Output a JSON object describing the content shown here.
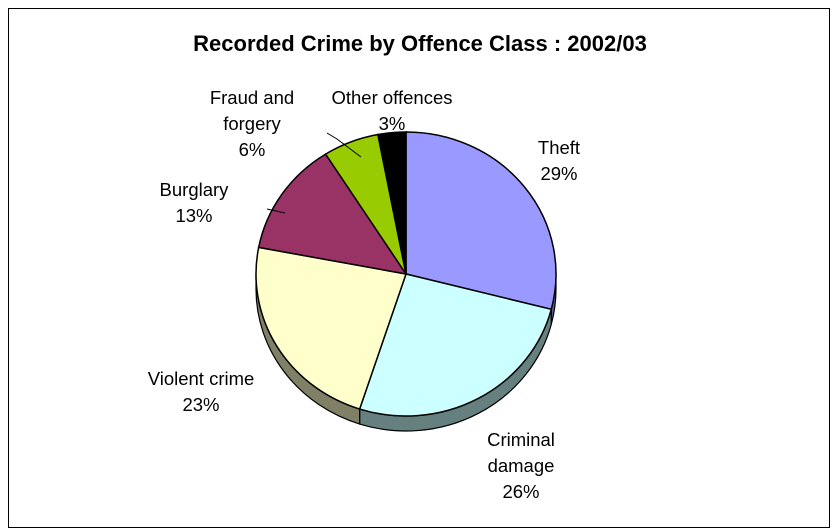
{
  "chart_data": {
    "type": "pie",
    "title": "Recorded Crime by Offence Class : 2002/03",
    "slices": [
      {
        "label": "Theft",
        "value": 29,
        "value_text": "29%",
        "color": "#9999FF",
        "side_color": "#5C5C99"
      },
      {
        "label": "Criminal damage",
        "value": 26,
        "value_text": "26%",
        "color": "#CCFFFF",
        "side_color": "#668080"
      },
      {
        "label": "Violent crime",
        "value": 23,
        "value_text": "23%",
        "color": "#FFFFCC",
        "side_color": "#808066"
      },
      {
        "label": "Burglary",
        "value": 13,
        "value_text": "13%",
        "color": "#993366",
        "side_color": "#4D1A33"
      },
      {
        "label": "Fraud and forgery",
        "value": 6,
        "value_text": "6%",
        "color": "#99CC00",
        "side_color": "#4D6600"
      },
      {
        "label": "Other offences",
        "value": 3,
        "value_text": "3%",
        "color": "#000000",
        "side_color": "#000000"
      }
    ],
    "legend": "none",
    "three_d": true
  }
}
